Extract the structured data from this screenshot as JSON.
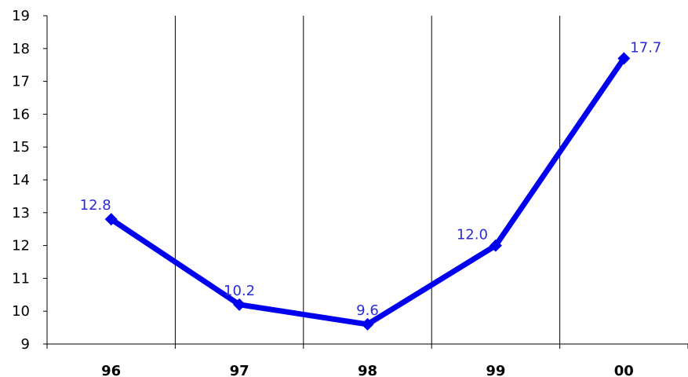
{
  "chart_data": {
    "type": "line",
    "title": "",
    "xlabel": "",
    "ylabel": "",
    "categories": [
      "96",
      "97",
      "98",
      "99",
      "00"
    ],
    "series": [
      {
        "values": [
          12.8,
          10.2,
          9.6,
          12.0,
          17.7
        ]
      }
    ],
    "data_labels": [
      "12.8",
      "10.2",
      "9.6",
      "12.0",
      "17.7"
    ],
    "ylim": [
      9,
      19
    ],
    "yticks": [
      9,
      10,
      11,
      12,
      13,
      14,
      15,
      16,
      17,
      18,
      19
    ],
    "grid": {
      "vertical": true,
      "horizontal": false
    },
    "legend": "none",
    "colors": {
      "line": "#0000ee",
      "label": "#2b2bd6",
      "axis": "#000000"
    },
    "marker": "diamond"
  }
}
